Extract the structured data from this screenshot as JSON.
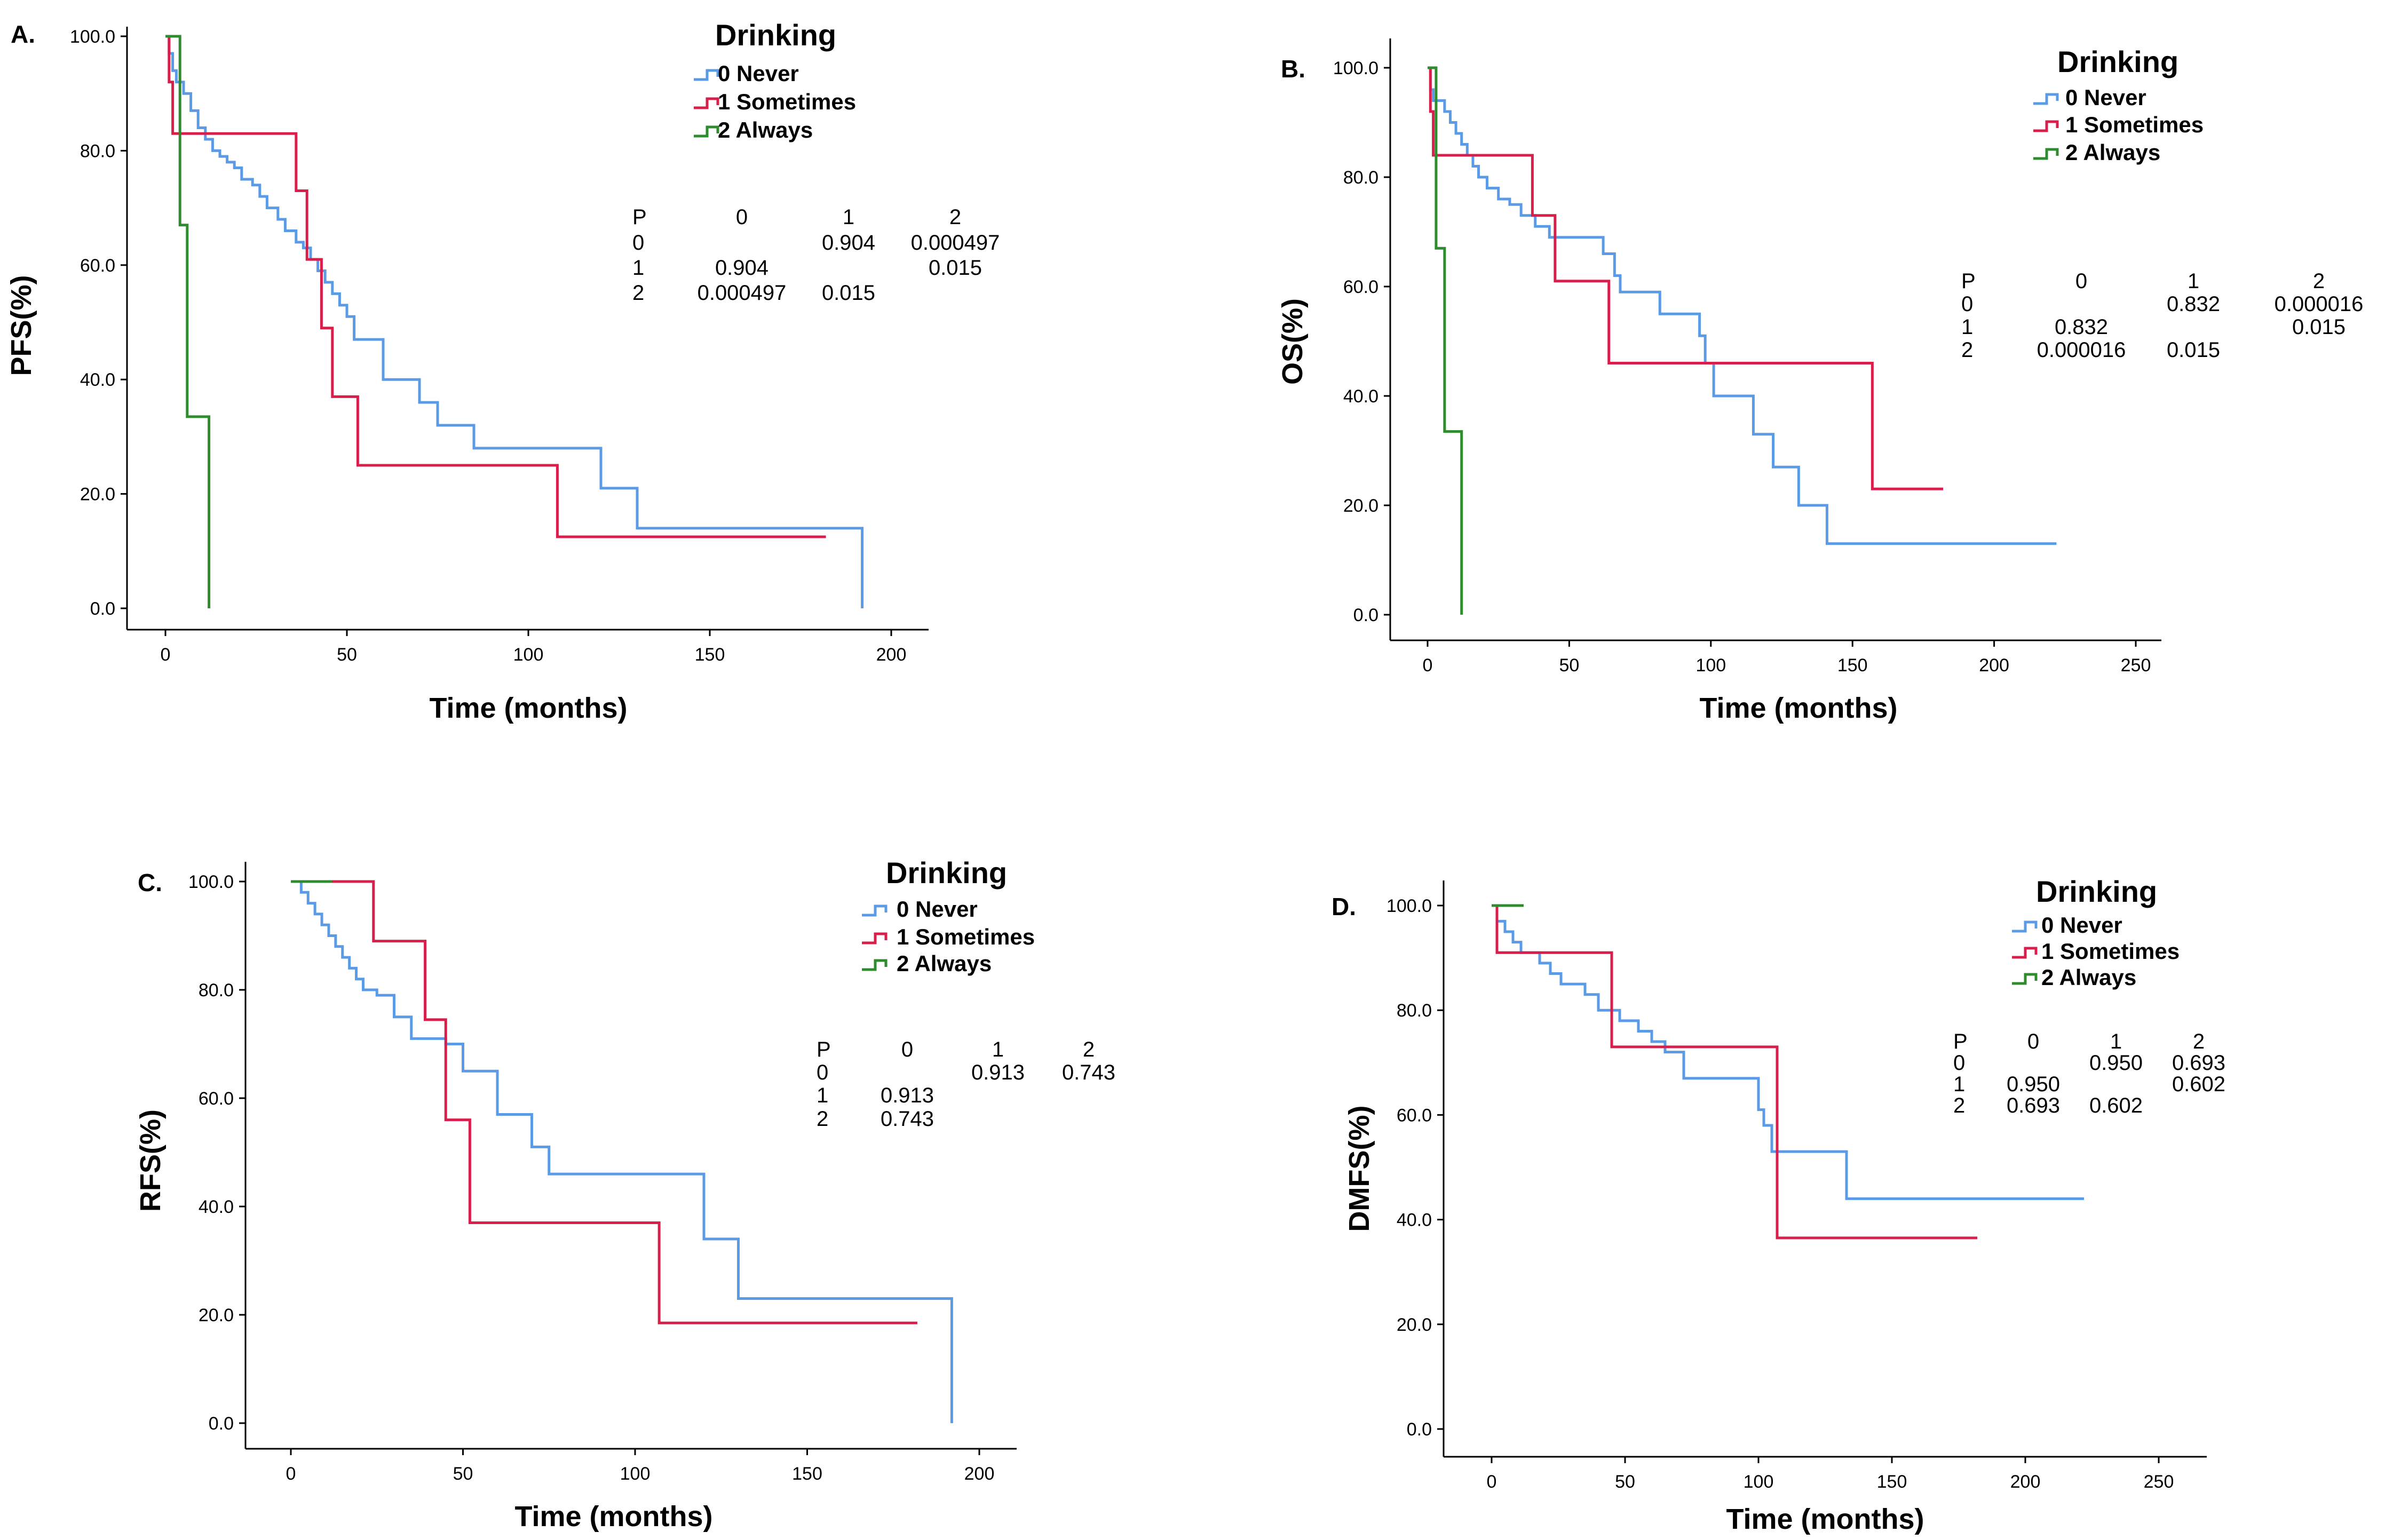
{
  "colors": {
    "never": "#5b9be6",
    "sometimes": "#d81e4b",
    "always": "#2e8b2e"
  },
  "chart_data": [
    {
      "type": "line",
      "panel": "A.",
      "ylabel": "PFS(%)",
      "xlabel": "Time (months)",
      "xlim": [
        0,
        200
      ],
      "ylim": [
        0,
        100
      ],
      "x_ticks": [
        "0",
        "50",
        "100",
        "150",
        "200"
      ],
      "y_ticks": [
        "0.0",
        "20.0",
        "40.0",
        "60.0",
        "80.0",
        "100.0"
      ],
      "legend_title": "Drinking",
      "legend": [
        "0 Never",
        "1 Sometimes",
        "2 Always"
      ],
      "pvalue_table": {
        "header": [
          "P",
          "0",
          "1",
          "2"
        ],
        "rows": [
          [
            "0",
            "",
            "0.904",
            "0.000497"
          ],
          [
            "1",
            "0.904",
            "",
            "0.015"
          ],
          [
            "2",
            "0.000497",
            "0.015",
            ""
          ]
        ]
      },
      "series": [
        {
          "name": "0 Never",
          "color_key": "never",
          "points": [
            [
              0,
              100
            ],
            [
              1,
              97
            ],
            [
              2,
              94
            ],
            [
              3,
              92
            ],
            [
              5,
              90
            ],
            [
              7,
              87
            ],
            [
              9,
              84
            ],
            [
              11,
              82
            ],
            [
              13,
              80
            ],
            [
              15,
              79
            ],
            [
              17,
              78
            ],
            [
              19,
              77
            ],
            [
              21,
              75
            ],
            [
              24,
              74
            ],
            [
              26,
              72
            ],
            [
              28,
              70
            ],
            [
              31,
              68
            ],
            [
              33,
              66
            ],
            [
              36,
              64
            ],
            [
              38,
              63
            ],
            [
              40,
              61
            ],
            [
              42,
              59
            ],
            [
              44,
              57
            ],
            [
              46,
              55
            ],
            [
              48,
              53
            ],
            [
              50,
              51
            ],
            [
              52,
              47
            ],
            [
              60,
              40
            ],
            [
              70,
              36
            ],
            [
              75,
              32
            ],
            [
              85,
              28
            ],
            [
              120,
              21
            ],
            [
              130,
              14
            ],
            [
              192,
              0
            ]
          ]
        },
        {
          "name": "1 Sometimes",
          "color_key": "sometimes",
          "points": [
            [
              0,
              100
            ],
            [
              1,
              92
            ],
            [
              2,
              83
            ],
            [
              36,
              73
            ],
            [
              39,
              61
            ],
            [
              43,
              49
            ],
            [
              46,
              37
            ],
            [
              53,
              25
            ],
            [
              108,
              12.5
            ],
            [
              182,
              12.5
            ]
          ]
        },
        {
          "name": "2 Always",
          "color_key": "always",
          "points": [
            [
              0,
              100
            ],
            [
              4,
              100
            ],
            [
              4,
              67
            ],
            [
              6,
              67
            ],
            [
              6,
              33.5
            ],
            [
              12,
              33.5
            ],
            [
              12,
              0
            ]
          ]
        }
      ]
    },
    {
      "type": "line",
      "panel": "B.",
      "ylabel": "OS(%)",
      "xlabel": "Time (months)",
      "xlim": [
        0,
        250
      ],
      "ylim": [
        0,
        100
      ],
      "x_ticks": [
        "0",
        "50",
        "100",
        "150",
        "200",
        "250"
      ],
      "y_ticks": [
        "0.0",
        "20.0",
        "40.0",
        "60.0",
        "80.0",
        "100.0"
      ],
      "legend_title": "Drinking",
      "legend": [
        "0 Never",
        "1 Sometimes",
        "2 Always"
      ],
      "pvalue_table": {
        "header": [
          "P",
          "0",
          "1",
          "2"
        ],
        "rows": [
          [
            "0",
            "",
            "0.832",
            "0.000016"
          ],
          [
            "1",
            "0.832",
            "",
            "0.015"
          ],
          [
            "2",
            "0.000016",
            "0.015",
            ""
          ]
        ]
      },
      "series": [
        {
          "name": "0 Never",
          "color_key": "never",
          "points": [
            [
              0,
              100
            ],
            [
              1,
              96
            ],
            [
              2,
              94
            ],
            [
              6,
              92
            ],
            [
              8,
              90
            ],
            [
              10,
              88
            ],
            [
              12,
              86
            ],
            [
              14,
              84
            ],
            [
              16,
              82
            ],
            [
              18,
              80
            ],
            [
              21,
              78
            ],
            [
              25,
              76
            ],
            [
              29,
              75
            ],
            [
              33,
              73
            ],
            [
              38,
              71
            ],
            [
              43,
              69
            ],
            [
              62,
              66
            ],
            [
              66,
              62
            ],
            [
              68,
              59
            ],
            [
              82,
              55
            ],
            [
              96,
              51
            ],
            [
              98,
              46
            ],
            [
              101,
              40
            ],
            [
              115,
              33
            ],
            [
              122,
              27
            ],
            [
              131,
              20
            ],
            [
              141,
              13
            ],
            [
              222,
              13
            ]
          ]
        },
        {
          "name": "1 Sometimes",
          "color_key": "sometimes",
          "points": [
            [
              0,
              100
            ],
            [
              1,
              92
            ],
            [
              2,
              84
            ],
            [
              37,
              73
            ],
            [
              45,
              61
            ],
            [
              64,
              46
            ],
            [
              157,
              46
            ],
            [
              157,
              23
            ],
            [
              182,
              23
            ]
          ]
        },
        {
          "name": "2 Always",
          "color_key": "always",
          "points": [
            [
              0,
              100
            ],
            [
              3,
              100
            ],
            [
              3,
              67
            ],
            [
              6,
              67
            ],
            [
              6,
              33.5
            ],
            [
              12,
              33.5
            ],
            [
              12,
              0
            ]
          ]
        }
      ]
    },
    {
      "type": "line",
      "panel": "C.",
      "ylabel": "RFS(%)",
      "xlabel": "Time (months)",
      "xlim": [
        0,
        200
      ],
      "ylim": [
        0,
        100
      ],
      "x_ticks": [
        "0",
        "50",
        "100",
        "150",
        "200"
      ],
      "y_ticks": [
        "0.0",
        "20.0",
        "40.0",
        "60.0",
        "80.0",
        "100.0"
      ],
      "legend_title": "Drinking",
      "legend": [
        "0 Never",
        "1 Sometimes",
        "2 Always"
      ],
      "pvalue_table": {
        "header": [
          "P",
          "0",
          "1",
          "2"
        ],
        "rows": [
          [
            "0",
            "",
            "0.913",
            "0.743"
          ],
          [
            "1",
            "0.913",
            "",
            ""
          ],
          [
            "2",
            "0.743",
            "",
            ""
          ]
        ]
      },
      "series": [
        {
          "name": "0 Never",
          "color_key": "never",
          "points": [
            [
              0,
              100
            ],
            [
              3,
              98
            ],
            [
              5,
              96
            ],
            [
              7,
              94
            ],
            [
              9,
              92
            ],
            [
              11,
              90
            ],
            [
              13,
              88
            ],
            [
              15,
              86
            ],
            [
              17,
              84
            ],
            [
              19,
              82
            ],
            [
              21,
              80
            ],
            [
              25,
              79
            ],
            [
              30,
              75
            ],
            [
              35,
              71
            ],
            [
              45,
              70
            ],
            [
              50,
              65
            ],
            [
              60,
              57
            ],
            [
              70,
              51
            ],
            [
              75,
              46
            ],
            [
              120,
              34
            ],
            [
              130,
              23
            ],
            [
              192,
              0
            ]
          ]
        },
        {
          "name": "1 Sometimes",
          "color_key": "sometimes",
          "points": [
            [
              0,
              100
            ],
            [
              24,
              100
            ],
            [
              24,
              89
            ],
            [
              39,
              74.5
            ],
            [
              45,
              56
            ],
            [
              52,
              37
            ],
            [
              107,
              18.5
            ],
            [
              182,
              18.5
            ]
          ]
        },
        {
          "name": "2 Always",
          "color_key": "always",
          "points": [
            [
              0,
              100
            ],
            [
              12,
              100
            ]
          ]
        }
      ]
    },
    {
      "type": "line",
      "panel": "D.",
      "ylabel": "DMFS(%)",
      "xlabel": "Time (months)",
      "xlim": [
        0,
        250
      ],
      "ylim": [
        0,
        100
      ],
      "x_ticks": [
        "0",
        "50",
        "100",
        "150",
        "200",
        "250"
      ],
      "y_ticks": [
        "0.0",
        "20.0",
        "40.0",
        "60.0",
        "80.0",
        "100.0"
      ],
      "legend_title": "Drinking",
      "legend": [
        "0 Never",
        "1 Sometimes",
        "2 Always"
      ],
      "pvalue_table": {
        "header": [
          "P",
          "0",
          "1",
          "2"
        ],
        "rows": [
          [
            "0",
            "",
            "0.950",
            "0.693"
          ],
          [
            "1",
            "0.950",
            "",
            "0.602"
          ],
          [
            "2",
            "0.693",
            "0.602",
            ""
          ]
        ]
      },
      "series": [
        {
          "name": "0 Never",
          "color_key": "never",
          "points": [
            [
              0,
              100
            ],
            [
              2,
              97
            ],
            [
              5,
              95
            ],
            [
              8,
              93
            ],
            [
              11,
              91
            ],
            [
              15,
              91
            ],
            [
              18,
              89
            ],
            [
              22,
              87
            ],
            [
              26,
              85
            ],
            [
              35,
              83
            ],
            [
              40,
              80
            ],
            [
              48,
              78
            ],
            [
              55,
              76
            ],
            [
              60,
              74
            ],
            [
              65,
              72
            ],
            [
              72,
              67
            ],
            [
              100,
              61
            ],
            [
              102,
              58
            ],
            [
              105,
              53
            ],
            [
              133,
              44
            ],
            [
              222,
              44
            ]
          ]
        },
        {
          "name": "1 Sometimes",
          "color_key": "sometimes",
          "points": [
            [
              0,
              100
            ],
            [
              2,
              91
            ],
            [
              45,
              73
            ],
            [
              107,
              36.5
            ],
            [
              182,
              36.5
            ]
          ]
        },
        {
          "name": "2 Always",
          "color_key": "always",
          "points": [
            [
              0,
              100
            ],
            [
              12,
              100
            ]
          ]
        }
      ]
    }
  ]
}
